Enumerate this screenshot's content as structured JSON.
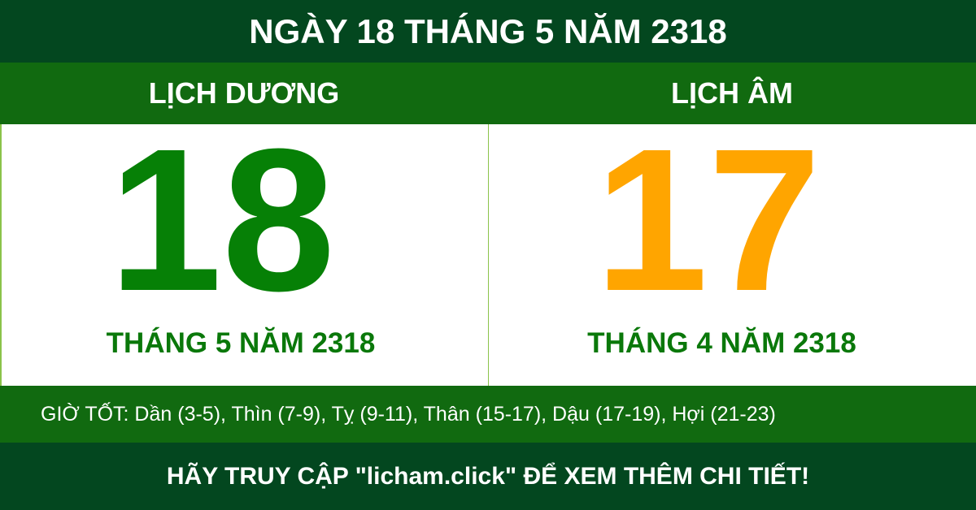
{
  "header": {
    "title": "NGÀY 18 THÁNG 5 NĂM 2318"
  },
  "solar": {
    "label": "LỊCH DƯƠNG",
    "day": "18",
    "month_year": "THÁNG 5 NĂM 2318"
  },
  "lunar": {
    "label": "LỊCH ÂM",
    "day": "17",
    "month_year": "THÁNG 4 NĂM 2318"
  },
  "good_hours": "GIỜ TỐT: Dần (3-5), Thìn (7-9), Tỵ (9-11), Thân (15-17), Dậu (17-19), Hợi (21-23)",
  "footer": "HÃY TRUY CẬP \"licham.click\" ĐỂ XEM THÊM CHI TIẾT!",
  "colors": {
    "dark_green": "#03471f",
    "green": "#116a10",
    "solar_day": "#068006",
    "lunar_day": "#ffa500"
  }
}
